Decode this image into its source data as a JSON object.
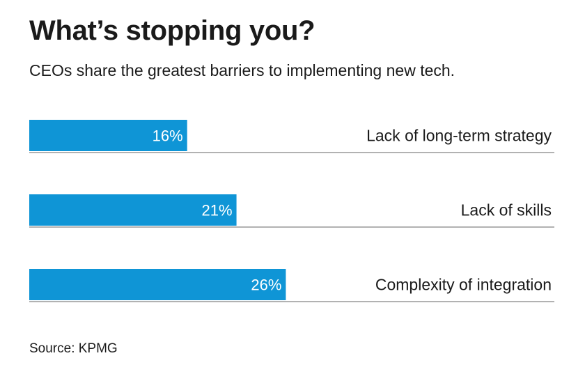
{
  "title": "What’s stopping you?",
  "subtitle": "CEOs share the greatest barriers to implementing new tech.",
  "source": "Source: KPMG",
  "colors": {
    "bar": "#0f95d6",
    "bar_label": "#ffffff",
    "text": "#1a1a1a",
    "rule": "#666666"
  },
  "chart_data": {
    "type": "bar",
    "orientation": "horizontal",
    "title": "What’s stopping you?",
    "subtitle": "CEOs share the greatest barriers to implementing new tech.",
    "categories": [
      "Lack of long-term strategy",
      "Lack of skills",
      "Complexity of integration"
    ],
    "values": [
      16,
      21,
      26
    ],
    "value_labels": [
      "16%",
      "21%",
      "26%"
    ],
    "unit": "%",
    "xlabel": "",
    "ylabel": "",
    "xlim": [
      0,
      50
    ],
    "grid": false,
    "legend": "none"
  }
}
